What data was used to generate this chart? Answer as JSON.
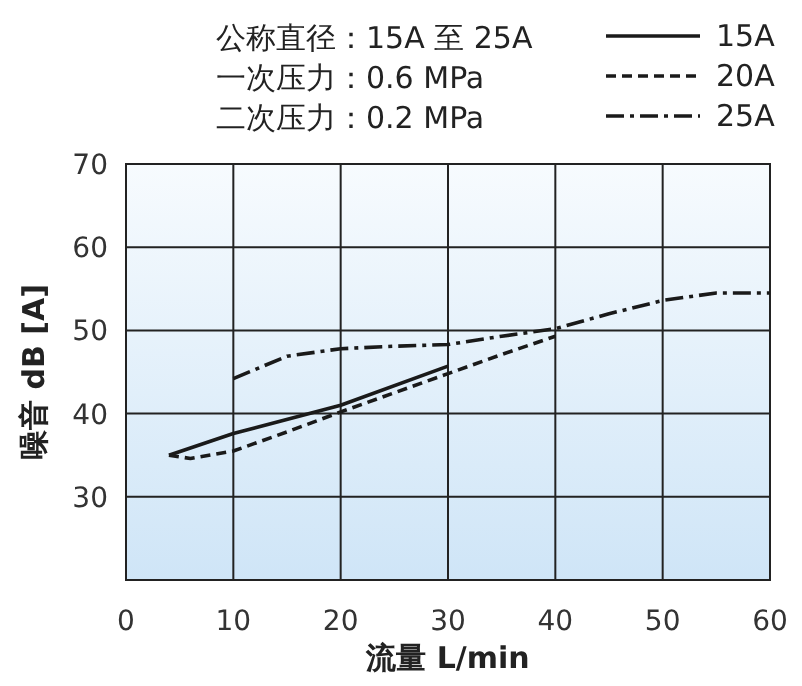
{
  "chart_data": {
    "type": "line",
    "xlabel": "流量 L/min",
    "ylabel": "噪音 dB [A]",
    "annotations": [
      "公称直径：15A 至 25A",
      "一次压力：0.6 MPa",
      "二次压力：0.2 MPa"
    ],
    "xlim": [
      0,
      60
    ],
    "ylim": [
      20,
      70
    ],
    "xticks": [
      0,
      10,
      20,
      30,
      40,
      50,
      60
    ],
    "yticks": [
      {
        "value": 20,
        "label": null
      },
      30,
      40,
      50,
      60,
      70
    ],
    "grid": true,
    "legend": "top right",
    "marker": "none",
    "series": [
      {
        "name": "15A",
        "color": "#1a1a1a",
        "line_style": "solid",
        "x": [
          4,
          10,
          20,
          30
        ],
        "values": [
          35,
          37.6,
          41,
          45.7
        ]
      },
      {
        "name": "20A",
        "color": "#1a1a1a",
        "line_style": "dashed",
        "x": [
          4,
          6,
          10,
          15,
          20,
          25,
          30,
          35,
          40
        ],
        "values": [
          35,
          34.6,
          35.5,
          37.8,
          40.2,
          42.5,
          44.8,
          47.1,
          49.3
        ]
      },
      {
        "name": "25A",
        "color": "#1a1a1a",
        "line_style": "dashdot",
        "x": [
          10,
          15,
          20,
          25,
          30,
          35,
          40,
          45,
          50,
          55,
          60
        ],
        "values": [
          44.2,
          46.9,
          47.8,
          48.1,
          48.3,
          49.3,
          50.2,
          52,
          53.6,
          54.5,
          54.5
        ]
      }
    ]
  }
}
